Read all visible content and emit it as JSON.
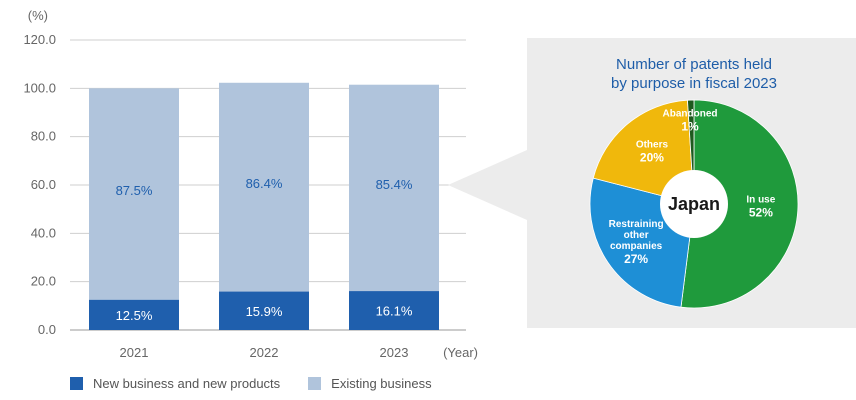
{
  "colors": {
    "new_business": "#1f5fad",
    "existing_business": "#b0c4dc",
    "axis_text": "#666666",
    "grid": "#cfcfcf",
    "panel_bg": "#ececec",
    "pie_title": "#1e5da8",
    "pie_in_use": "#1f9a3c",
    "pie_restraining": "#1e8fd6",
    "pie_others": "#f0b80c",
    "pie_abandoned": "#1e5a1e"
  },
  "chart_data": [
    {
      "type": "bar",
      "stacked": true,
      "y_unit": "(%)",
      "x_unit": "(Year)",
      "ylim": [
        0,
        120
      ],
      "y_ticks": [
        "0.0",
        "20.0",
        "40.0",
        "60.0",
        "80.0",
        "100.0",
        "120.0"
      ],
      "categories": [
        "2021",
        "2022",
        "2023"
      ],
      "series": [
        {
          "name": "New business and new products",
          "values": [
            12.5,
            15.9,
            16.1
          ],
          "labels": [
            "12.5%",
            "15.9%",
            "16.1%"
          ]
        },
        {
          "name": "Existing business",
          "values": [
            87.5,
            86.4,
            85.4
          ],
          "labels": [
            "87.5%",
            "86.4%",
            "85.4%"
          ]
        }
      ],
      "grid": true,
      "legend": "bottom"
    },
    {
      "type": "pie",
      "title_lines": [
        "Number of patents held",
        "by purpose in fiscal 2023"
      ],
      "center_label": "Japan",
      "slices": [
        {
          "label_lines": [
            "In use"
          ],
          "value": 52,
          "value_label": "52%"
        },
        {
          "label_lines": [
            "Restraining",
            "other",
            "companies"
          ],
          "value": 27,
          "value_label": "27%"
        },
        {
          "label_lines": [
            "Others"
          ],
          "value": 20,
          "value_label": "20%"
        },
        {
          "label_lines": [
            "Abandoned"
          ],
          "value": 1,
          "value_label": "1%"
        }
      ]
    }
  ]
}
